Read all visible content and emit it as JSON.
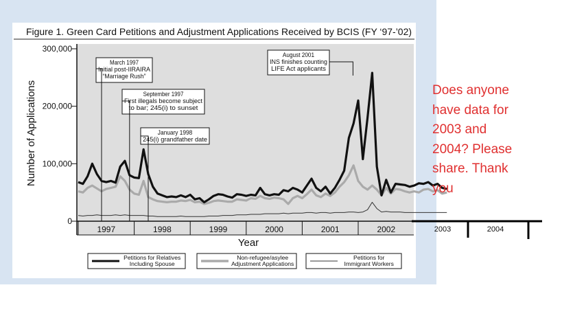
{
  "chart_data": {
    "type": "line",
    "title": "Figure 1. Green Card Petitions and Adjustment Applications Received by BCIS (FY ‘97-’02)",
    "xlabel": "Year",
    "ylabel": "Number of Applications",
    "ylim": [
      0,
      300000
    ],
    "yticks": [
      "0",
      "100,000",
      "200,000",
      "300,000"
    ],
    "year_labels": [
      "1997",
      "1998",
      "1999",
      "2000",
      "2001",
      "2002"
    ],
    "extended_years": [
      "2003",
      "2004"
    ],
    "x_unit": "month",
    "x_start": "1996-10",
    "grid": false,
    "legend_position": "bottom",
    "colors": {
      "relatives": "#111111",
      "refugee": "#aaaaaa",
      "workers": "#333333",
      "note": "#e03030"
    },
    "series": [
      {
        "name": "Petitions for Relatives Including Spouse",
        "name_lines": [
          "Petitions for Relatives",
          "Including Spouse"
        ],
        "values": [
          68000,
          65000,
          78000,
          100000,
          82000,
          70000,
          68000,
          70000,
          67000,
          95000,
          105000,
          80000,
          76000,
          75000,
          125000,
          82000,
          60000,
          48000,
          45000,
          42000,
          43000,
          42000,
          45000,
          42000,
          46000,
          38000,
          40000,
          33000,
          38000,
          44000,
          47000,
          46000,
          43000,
          41000,
          47000,
          46000,
          44000,
          46000,
          45000,
          58000,
          47000,
          45000,
          47000,
          46000,
          54000,
          52000,
          58000,
          55000,
          50000,
          62000,
          74000,
          58000,
          52000,
          60000,
          48000,
          58000,
          72000,
          88000,
          145000,
          170000,
          210000,
          108000,
          180000,
          258000,
          95000,
          45000,
          72000,
          50000,
          65000,
          64000,
          63000,
          60000,
          62000,
          66000,
          65000,
          68000,
          62000,
          65000,
          58000,
          56000
        ]
      },
      {
        "name": "Non-refugee/asylee Adjustment Applications",
        "name_lines": [
          "Non-refugee/asylee",
          "Adjustment Applications"
        ],
        "values": [
          52000,
          50000,
          58000,
          62000,
          57000,
          52000,
          56000,
          58000,
          60000,
          78000,
          70000,
          55000,
          48000,
          46000,
          70000,
          42000,
          38000,
          35000,
          34000,
          33000,
          34000,
          34000,
          36000,
          35000,
          37000,
          33000,
          34000,
          30000,
          32000,
          35000,
          36000,
          35000,
          34000,
          34000,
          38000,
          37000,
          36000,
          40000,
          39000,
          44000,
          40000,
          39000,
          41000,
          40000,
          38000,
          30000,
          40000,
          44000,
          40000,
          47000,
          55000,
          45000,
          42000,
          48000,
          44000,
          50000,
          60000,
          68000,
          80000,
          97000,
          70000,
          60000,
          55000,
          62000,
          55000,
          45000,
          58000,
          48000,
          56000,
          55000,
          52000,
          50000,
          52000,
          50000,
          55000,
          56000,
          52000,
          54000,
          48000,
          50000
        ]
      },
      {
        "name": "Petitions for Immigrant Workers",
        "name_lines": [
          "Petitions for",
          "Immigrant Workers"
        ],
        "values": [
          10000,
          9000,
          10000,
          10000,
          11000,
          10000,
          10000,
          10000,
          11000,
          10000,
          11000,
          10000,
          10000,
          10000,
          10000,
          9000,
          9000,
          8000,
          8000,
          8000,
          8000,
          8000,
          9000,
          8000,
          8000,
          8000,
          8000,
          8000,
          9000,
          9000,
          9000,
          10000,
          10000,
          10000,
          11000,
          11000,
          11000,
          12000,
          12000,
          12000,
          13000,
          13000,
          13000,
          13000,
          14000,
          13000,
          14000,
          14000,
          14000,
          15000,
          15000,
          14000,
          15000,
          15000,
          14000,
          15000,
          15000,
          15000,
          16000,
          16000,
          15000,
          16000,
          20000,
          33000,
          22000,
          16000,
          17000,
          16000,
          16000,
          16000,
          15000,
          15000,
          15000,
          15000,
          15000,
          15000,
          15000,
          15000,
          15000,
          15000
        ]
      }
    ],
    "annotations": [
      {
        "text_lines": [
          "March 1997",
          "Initial post-IIRAIRA",
          "“Marriage Rush”"
        ]
      },
      {
        "text_lines": [
          "September 1997",
          "First illegals become subject",
          "to bar; 245(i) to sunset"
        ]
      },
      {
        "text_lines": [
          "January 1998",
          "245(i) grandfather date"
        ]
      },
      {
        "text_lines": [
          "August 2001",
          "INS finishes counting",
          "LIFE Act applicants"
        ]
      }
    ]
  },
  "note": {
    "lines": [
      "Does anyone",
      "have data for",
      "2003 and",
      "2004? Please",
      "share. Thank",
      "you"
    ]
  }
}
